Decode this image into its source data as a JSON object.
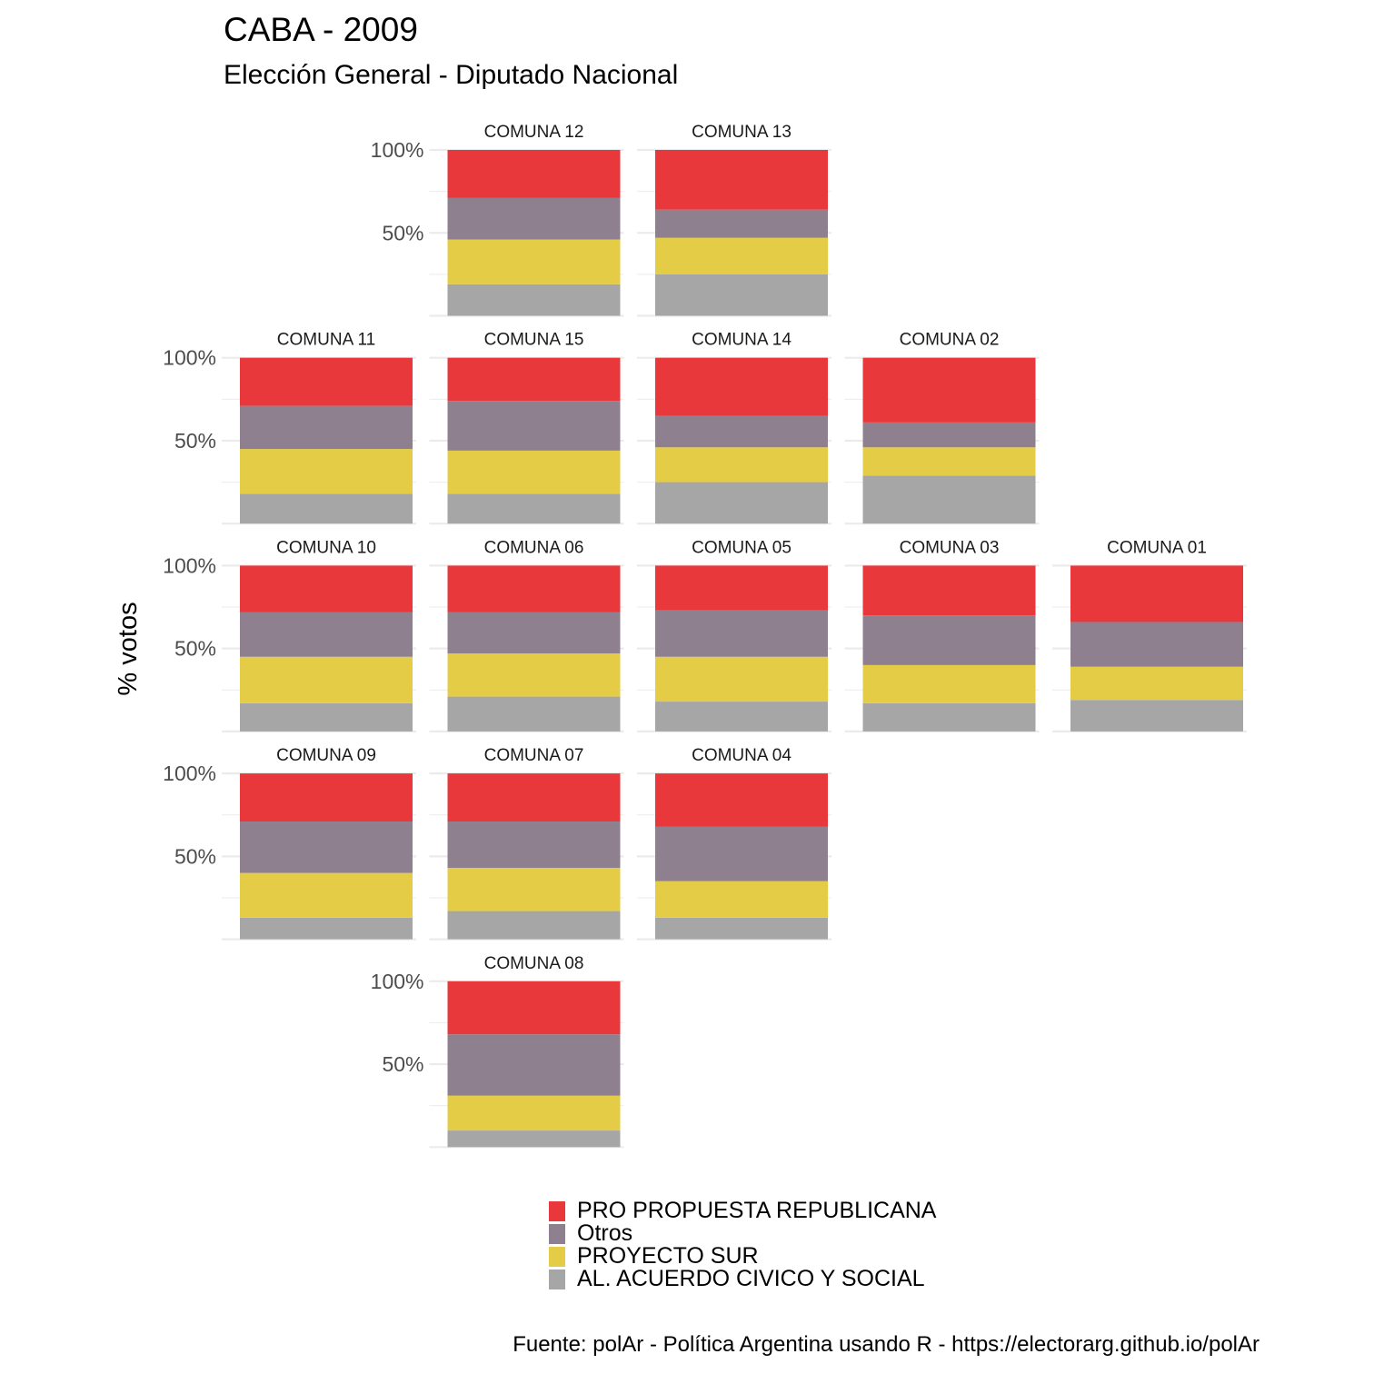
{
  "chart_data": {
    "type": "bar",
    "title": "CABA - 2009",
    "subtitle": "Elección General - Diputado Nacional",
    "ylabel": "% votos",
    "xlabel": "",
    "ylim": [
      0,
      100
    ],
    "y_ticks": [
      50,
      100
    ],
    "y_tick_labels": [
      "50%",
      "100%"
    ],
    "stacking": "percent",
    "grid": true,
    "legend_position": "bottom",
    "caption": "Fuente: polAr - Política Argentina usando R - https://electorarg.github.io/polAr",
    "series": [
      {
        "name": "PRO PROPUESTA REPUBLICANA",
        "color": "#e8383b"
      },
      {
        "name": "Otros",
        "color": "#8f8090"
      },
      {
        "name": "PROYECTO SUR",
        "color": "#e4cc47"
      },
      {
        "name": "AL. ACUERDO CIVICO Y SOCIAL",
        "color": "#a7a6a6"
      }
    ],
    "panels": [
      {
        "comuna": "COMUNA 12",
        "row": 0,
        "col": 2,
        "values": [
          29,
          25,
          27,
          19
        ]
      },
      {
        "comuna": "COMUNA 13",
        "row": 0,
        "col": 3,
        "values": [
          36,
          17,
          22,
          25
        ]
      },
      {
        "comuna": "COMUNA 11",
        "row": 1,
        "col": 1,
        "values": [
          29,
          26,
          27,
          18
        ]
      },
      {
        "comuna": "COMUNA 15",
        "row": 1,
        "col": 2,
        "values": [
          26,
          30,
          26,
          18
        ]
      },
      {
        "comuna": "COMUNA 14",
        "row": 1,
        "col": 3,
        "values": [
          35,
          19,
          21,
          25
        ]
      },
      {
        "comuna": "COMUNA 02",
        "row": 1,
        "col": 4,
        "values": [
          39,
          15,
          17,
          29
        ]
      },
      {
        "comuna": "COMUNA 10",
        "row": 2,
        "col": 1,
        "values": [
          28,
          27,
          28,
          17
        ]
      },
      {
        "comuna": "COMUNA 06",
        "row": 2,
        "col": 2,
        "values": [
          28,
          25,
          26,
          21
        ]
      },
      {
        "comuna": "COMUNA 05",
        "row": 2,
        "col": 3,
        "values": [
          27,
          28,
          27,
          18
        ]
      },
      {
        "comuna": "COMUNA 03",
        "row": 2,
        "col": 4,
        "values": [
          30,
          30,
          23,
          17
        ]
      },
      {
        "comuna": "COMUNA 01",
        "row": 2,
        "col": 5,
        "values": [
          34,
          27,
          20,
          19
        ]
      },
      {
        "comuna": "COMUNA 09",
        "row": 3,
        "col": 1,
        "values": [
          29,
          31,
          27,
          13
        ]
      },
      {
        "comuna": "COMUNA 07",
        "row": 3,
        "col": 2,
        "values": [
          29,
          28,
          26,
          17
        ]
      },
      {
        "comuna": "COMUNA 04",
        "row": 3,
        "col": 3,
        "values": [
          32,
          33,
          22,
          13
        ]
      },
      {
        "comuna": "COMUNA 08",
        "row": 4,
        "col": 2,
        "values": [
          32,
          37,
          21,
          10
        ]
      }
    ]
  }
}
